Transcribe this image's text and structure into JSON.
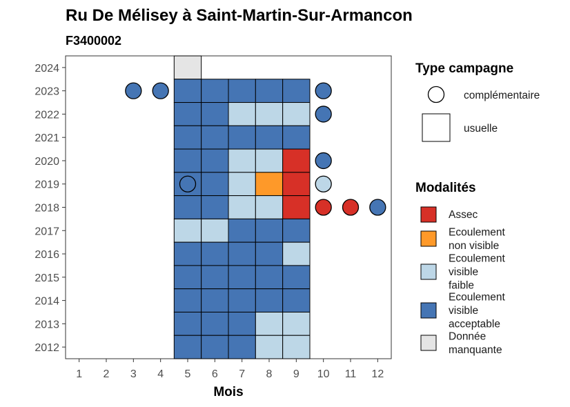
{
  "chart_data": {
    "type": "heatmap",
    "title": "Ru De Mélisey à Saint-Martin-Sur-Armancon",
    "subtitle": "F3400002",
    "xlabel": "Mois",
    "ylabel": "",
    "x_ticks": [
      1,
      2,
      3,
      4,
      5,
      6,
      7,
      8,
      9,
      10,
      11,
      12
    ],
    "y_ticks": [
      2012,
      2013,
      2014,
      2015,
      2016,
      2017,
      2018,
      2019,
      2020,
      2021,
      2022,
      2023,
      2024
    ],
    "xlim": [
      0.5,
      12.5
    ],
    "ylim": [
      2011.5,
      2024.5
    ],
    "grid": false,
    "modalites": [
      {
        "key": "assec",
        "label_lines": [
          "Assec"
        ],
        "color": "#d73027"
      },
      {
        "key": "ecoul_nv",
        "label_lines": [
          "Ecoulement",
          "non visible"
        ],
        "color": "#fe9929"
      },
      {
        "key": "ecoul_faible",
        "label_lines": [
          "Ecoulement",
          "visible",
          "faible"
        ],
        "color": "#bdd7e7"
      },
      {
        "key": "ecoul_acc",
        "label_lines": [
          "Ecoulement",
          "visible",
          "acceptable"
        ],
        "color": "#4575b4"
      },
      {
        "key": "manquante",
        "label_lines": [
          "Donnée",
          "manquante"
        ],
        "color": "#e5e5e5"
      }
    ],
    "campagne_types": [
      {
        "key": "complementaire",
        "label": "complémentaire",
        "shape": "circle"
      },
      {
        "key": "usuelle",
        "label": "usuelle",
        "shape": "square"
      }
    ],
    "legend_campagne_title": "Type campagne",
    "legend_modalites_title": "Modalités",
    "legend_position": "right",
    "usuelle": [
      {
        "year": 2024,
        "month": 5,
        "m": "manquante"
      },
      {
        "year": 2023,
        "month": 5,
        "m": "ecoul_acc"
      },
      {
        "year": 2023,
        "month": 6,
        "m": "ecoul_acc"
      },
      {
        "year": 2023,
        "month": 7,
        "m": "ecoul_acc"
      },
      {
        "year": 2023,
        "month": 8,
        "m": "ecoul_acc"
      },
      {
        "year": 2023,
        "month": 9,
        "m": "ecoul_acc"
      },
      {
        "year": 2022,
        "month": 5,
        "m": "ecoul_acc"
      },
      {
        "year": 2022,
        "month": 6,
        "m": "ecoul_acc"
      },
      {
        "year": 2022,
        "month": 7,
        "m": "ecoul_faible"
      },
      {
        "year": 2022,
        "month": 8,
        "m": "ecoul_faible"
      },
      {
        "year": 2022,
        "month": 9,
        "m": "ecoul_faible"
      },
      {
        "year": 2021,
        "month": 5,
        "m": "ecoul_acc"
      },
      {
        "year": 2021,
        "month": 6,
        "m": "ecoul_acc"
      },
      {
        "year": 2021,
        "month": 7,
        "m": "ecoul_acc"
      },
      {
        "year": 2021,
        "month": 8,
        "m": "ecoul_acc"
      },
      {
        "year": 2021,
        "month": 9,
        "m": "ecoul_acc"
      },
      {
        "year": 2020,
        "month": 5,
        "m": "ecoul_acc"
      },
      {
        "year": 2020,
        "month": 6,
        "m": "ecoul_acc"
      },
      {
        "year": 2020,
        "month": 7,
        "m": "ecoul_faible"
      },
      {
        "year": 2020,
        "month": 8,
        "m": "ecoul_faible"
      },
      {
        "year": 2020,
        "month": 9,
        "m": "assec"
      },
      {
        "year": 2019,
        "month": 5,
        "m": "ecoul_acc"
      },
      {
        "year": 2019,
        "month": 6,
        "m": "ecoul_acc"
      },
      {
        "year": 2019,
        "month": 7,
        "m": "ecoul_faible"
      },
      {
        "year": 2019,
        "month": 8,
        "m": "ecoul_nv"
      },
      {
        "year": 2019,
        "month": 9,
        "m": "assec"
      },
      {
        "year": 2018,
        "month": 5,
        "m": "ecoul_acc"
      },
      {
        "year": 2018,
        "month": 6,
        "m": "ecoul_acc"
      },
      {
        "year": 2018,
        "month": 7,
        "m": "ecoul_faible"
      },
      {
        "year": 2018,
        "month": 8,
        "m": "ecoul_faible"
      },
      {
        "year": 2018,
        "month": 9,
        "m": "assec"
      },
      {
        "year": 2017,
        "month": 5,
        "m": "ecoul_faible"
      },
      {
        "year": 2017,
        "month": 6,
        "m": "ecoul_faible"
      },
      {
        "year": 2017,
        "month": 7,
        "m": "ecoul_acc"
      },
      {
        "year": 2017,
        "month": 8,
        "m": "ecoul_acc"
      },
      {
        "year": 2017,
        "month": 9,
        "m": "ecoul_acc"
      },
      {
        "year": 2016,
        "month": 5,
        "m": "ecoul_acc"
      },
      {
        "year": 2016,
        "month": 6,
        "m": "ecoul_acc"
      },
      {
        "year": 2016,
        "month": 7,
        "m": "ecoul_acc"
      },
      {
        "year": 2016,
        "month": 8,
        "m": "ecoul_acc"
      },
      {
        "year": 2016,
        "month": 9,
        "m": "ecoul_faible"
      },
      {
        "year": 2015,
        "month": 5,
        "m": "ecoul_acc"
      },
      {
        "year": 2015,
        "month": 6,
        "m": "ecoul_acc"
      },
      {
        "year": 2015,
        "month": 7,
        "m": "ecoul_acc"
      },
      {
        "year": 2015,
        "month": 8,
        "m": "ecoul_acc"
      },
      {
        "year": 2015,
        "month": 9,
        "m": "ecoul_acc"
      },
      {
        "year": 2014,
        "month": 5,
        "m": "ecoul_acc"
      },
      {
        "year": 2014,
        "month": 6,
        "m": "ecoul_acc"
      },
      {
        "year": 2014,
        "month": 7,
        "m": "ecoul_acc"
      },
      {
        "year": 2014,
        "month": 8,
        "m": "ecoul_acc"
      },
      {
        "year": 2014,
        "month": 9,
        "m": "ecoul_acc"
      },
      {
        "year": 2013,
        "month": 5,
        "m": "ecoul_acc"
      },
      {
        "year": 2013,
        "month": 6,
        "m": "ecoul_acc"
      },
      {
        "year": 2013,
        "month": 7,
        "m": "ecoul_acc"
      },
      {
        "year": 2013,
        "month": 8,
        "m": "ecoul_faible"
      },
      {
        "year": 2013,
        "month": 9,
        "m": "ecoul_faible"
      },
      {
        "year": 2012,
        "month": 5,
        "m": "ecoul_acc"
      },
      {
        "year": 2012,
        "month": 6,
        "m": "ecoul_acc"
      },
      {
        "year": 2012,
        "month": 7,
        "m": "ecoul_acc"
      },
      {
        "year": 2012,
        "month": 8,
        "m": "ecoul_faible"
      },
      {
        "year": 2012,
        "month": 9,
        "m": "ecoul_faible"
      }
    ],
    "complementaire": [
      {
        "year": 2023,
        "month": 3,
        "m": "ecoul_acc"
      },
      {
        "year": 2023,
        "month": 4,
        "m": "ecoul_acc"
      },
      {
        "year": 2023,
        "month": 10,
        "m": "ecoul_acc"
      },
      {
        "year": 2022,
        "month": 10,
        "m": "ecoul_acc"
      },
      {
        "year": 2020,
        "month": 10,
        "m": "ecoul_acc"
      },
      {
        "year": 2019,
        "month": 5,
        "m": "ecoul_acc"
      },
      {
        "year": 2019,
        "month": 10,
        "m": "ecoul_faible"
      },
      {
        "year": 2018,
        "month": 10,
        "m": "assec"
      },
      {
        "year": 2018,
        "month": 11,
        "m": "assec"
      },
      {
        "year": 2018,
        "month": 12,
        "m": "ecoul_acc"
      }
    ]
  }
}
